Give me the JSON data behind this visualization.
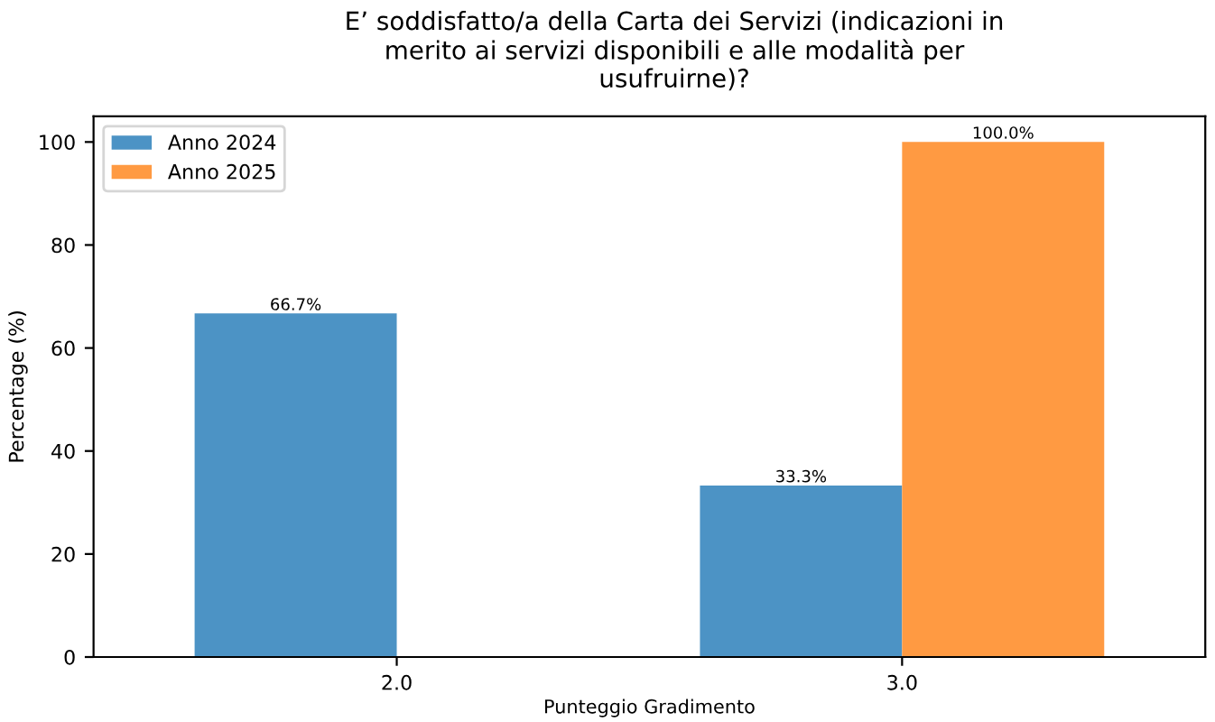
{
  "chart_data": {
    "type": "bar",
    "title": "E’ soddisfatto/a della Carta dei Servizi (indicazioni in\nmerito ai servizi disponibili e alle modalità per\nusufruirne)?",
    "xlabel": "Punteggio Gradimento",
    "ylabel": "Percentage (%)",
    "categories": [
      "2.0",
      "3.0"
    ],
    "series": [
      {
        "name": "Anno 2024",
        "color": "#4c93c5",
        "values": [
          66.7,
          33.3
        ],
        "value_labels": [
          "66.7%",
          "33.3%"
        ]
      },
      {
        "name": "Anno 2025",
        "color": "#ff9a42",
        "values": [
          null,
          100.0
        ],
        "value_labels": [
          null,
          "100.0%"
        ]
      }
    ],
    "ylim": [
      0,
      105
    ],
    "yticks": [
      0,
      20,
      40,
      60,
      80,
      100
    ],
    "grid": false,
    "legend": "top left"
  }
}
